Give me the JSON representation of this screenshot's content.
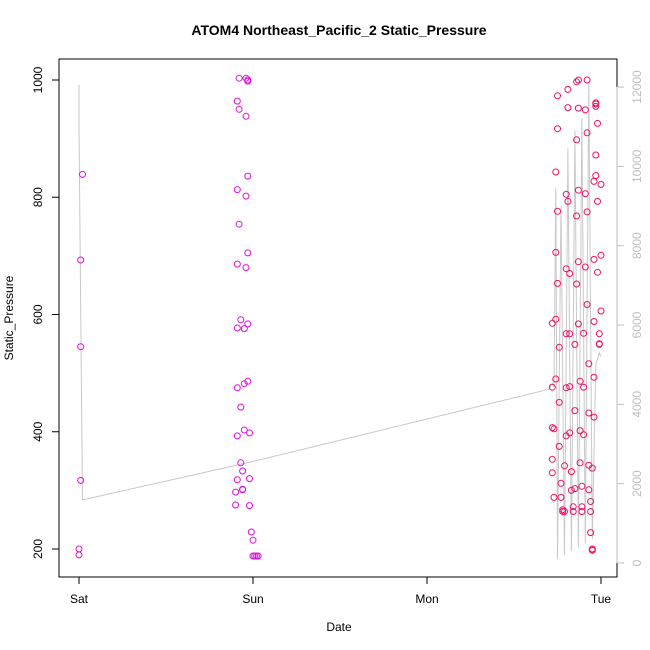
{
  "chart_data": {
    "type": "scatter",
    "title": "ATOM4 Northeast_Pacific_2 Static_Pressure",
    "xlabel": "Date",
    "ylabel": "Static_Pressure",
    "x_ticks": [
      "Sat",
      "Sun",
      "Mon",
      "Tue"
    ],
    "x_unit": "days since the Sat tick",
    "xlim": [
      -0.15,
      3.15
    ],
    "ylim": [
      175,
      1020
    ],
    "y_ticks": [
      200,
      400,
      600,
      800,
      1000
    ],
    "y2_ticks": [
      0,
      2000,
      4000,
      6000,
      8000,
      10000,
      12000
    ],
    "y2lim": [
      -300,
      12500
    ],
    "grid": false,
    "colors": {
      "points_early": "#dd11dd",
      "points_late": "#ee1166",
      "line": "#c8c8c8",
      "axis": "#000000",
      "right_axis": "#bebebe"
    },
    "series": [
      {
        "name": "Static_Pressure",
        "points": [
          [
            0.0,
            190
          ],
          [
            0.0,
            200
          ],
          [
            0.01,
            317
          ],
          [
            0.01,
            545
          ],
          [
            0.01,
            693
          ],
          [
            0.02,
            839
          ],
          [
            0.9,
            275
          ],
          [
            0.9,
            297
          ],
          [
            0.91,
            318
          ],
          [
            0.91,
            393
          ],
          [
            0.91,
            475
          ],
          [
            0.91,
            577
          ],
          [
            0.91,
            686
          ],
          [
            0.91,
            813
          ],
          [
            0.91,
            964
          ],
          [
            0.92,
            1003
          ],
          [
            0.92,
            950
          ],
          [
            0.92,
            754
          ],
          [
            0.93,
            591
          ],
          [
            0.93,
            442
          ],
          [
            0.93,
            347
          ],
          [
            0.94,
            301
          ],
          [
            0.94,
            302
          ],
          [
            0.94,
            333
          ],
          [
            0.95,
            403
          ],
          [
            0.95,
            482
          ],
          [
            0.95,
            576
          ],
          [
            0.96,
            680
          ],
          [
            0.96,
            802
          ],
          [
            0.96,
            938
          ],
          [
            0.96,
            1003
          ],
          [
            0.97,
            998
          ],
          [
            0.97,
            1000
          ],
          [
            0.97,
            836
          ],
          [
            0.97,
            705
          ],
          [
            0.97,
            584
          ],
          [
            0.97,
            486
          ],
          [
            0.98,
            398
          ],
          [
            0.98,
            320
          ],
          [
            0.98,
            274
          ],
          [
            0.99,
            229
          ],
          [
            1.0,
            215
          ],
          [
            1.0,
            188
          ],
          [
            1.01,
            188
          ],
          [
            1.02,
            188
          ],
          [
            1.03,
            188
          ],
          [
            2.72,
            330
          ],
          [
            2.72,
            353
          ],
          [
            2.72,
            407
          ],
          [
            2.72,
            476
          ],
          [
            2.72,
            585
          ],
          [
            2.73,
            288
          ],
          [
            2.73,
            405
          ],
          [
            2.74,
            490
          ],
          [
            2.74,
            592
          ],
          [
            2.74,
            706
          ],
          [
            2.74,
            843
          ],
          [
            2.75,
            973
          ],
          [
            2.75,
            917
          ],
          [
            2.75,
            776
          ],
          [
            2.75,
            653
          ],
          [
            2.76,
            544
          ],
          [
            2.76,
            450
          ],
          [
            2.76,
            375
          ],
          [
            2.77,
            312
          ],
          [
            2.77,
            288
          ],
          [
            2.78,
            264
          ],
          [
            2.78,
            267
          ],
          [
            2.79,
            264
          ],
          [
            2.79,
            342
          ],
          [
            2.8,
            393
          ],
          [
            2.8,
            475
          ],
          [
            2.8,
            567
          ],
          [
            2.8,
            678
          ],
          [
            2.8,
            805
          ],
          [
            2.81,
            953
          ],
          [
            2.81,
            984
          ],
          [
            2.81,
            793
          ],
          [
            2.82,
            670
          ],
          [
            2.82,
            567
          ],
          [
            2.82,
            477
          ],
          [
            2.82,
            398
          ],
          [
            2.83,
            332
          ],
          [
            2.83,
            300
          ],
          [
            2.84,
            264
          ],
          [
            2.84,
            272
          ],
          [
            2.85,
            303
          ],
          [
            2.85,
            436
          ],
          [
            2.85,
            549
          ],
          [
            2.86,
            652
          ],
          [
            2.86,
            768
          ],
          [
            2.86,
            898
          ],
          [
            2.86,
            997
          ],
          [
            2.87,
            1000
          ],
          [
            2.87,
            952
          ],
          [
            2.87,
            812
          ],
          [
            2.87,
            690
          ],
          [
            2.87,
            584
          ],
          [
            2.88,
            486
          ],
          [
            2.88,
            402
          ],
          [
            2.88,
            347
          ],
          [
            2.89,
            264
          ],
          [
            2.89,
            272
          ],
          [
            2.89,
            307
          ],
          [
            2.9,
            395
          ],
          [
            2.9,
            476
          ],
          [
            2.9,
            568
          ],
          [
            2.91,
            681
          ],
          [
            2.91,
            806
          ],
          [
            2.91,
            949
          ],
          [
            2.92,
            1000
          ],
          [
            2.92,
            910
          ],
          [
            2.92,
            775
          ],
          [
            2.92,
            617
          ],
          [
            2.93,
            516
          ],
          [
            2.93,
            432
          ],
          [
            2.93,
            343
          ],
          [
            2.93,
            301
          ],
          [
            2.94,
            281
          ],
          [
            2.94,
            264
          ],
          [
            2.94,
            228
          ],
          [
            2.95,
            200
          ],
          [
            2.95,
            198
          ],
          [
            2.95,
            198
          ],
          [
            2.95,
            338
          ],
          [
            2.96,
            425
          ],
          [
            2.96,
            493
          ],
          [
            2.96,
            588
          ],
          [
            2.96,
            694
          ],
          [
            2.96,
            827
          ],
          [
            2.97,
            837
          ],
          [
            2.97,
            872
          ],
          [
            2.97,
            961
          ],
          [
            2.97,
            959
          ],
          [
            2.97,
            955
          ],
          [
            2.98,
            926
          ],
          [
            2.98,
            793
          ],
          [
            2.98,
            672
          ],
          [
            2.99,
            567
          ],
          [
            2.99,
            549
          ],
          [
            2.99,
            550
          ],
          [
            3.0,
            606
          ],
          [
            3.0,
            701
          ],
          [
            3.0,
            822
          ]
        ]
      },
      {
        "name": "secondary_axis_line",
        "axis": "right",
        "points": [
          [
            0.0,
            12050
          ],
          [
            0.0,
            11000
          ],
          [
            0.02,
            1600
          ],
          [
            0.03,
            1600
          ],
          [
            1.0,
            2560
          ],
          [
            2.7,
            4380
          ],
          [
            2.72,
            4530
          ],
          [
            2.73,
            4430
          ],
          [
            2.74,
            9450
          ],
          [
            2.75,
            100
          ],
          [
            2.77,
            9000
          ],
          [
            2.79,
            200
          ],
          [
            2.81,
            10450
          ],
          [
            2.83,
            300
          ],
          [
            2.85,
            10900
          ],
          [
            2.87,
            400
          ],
          [
            2.89,
            11200
          ],
          [
            2.91,
            500
          ],
          [
            2.93,
            12100
          ],
          [
            2.95,
            600
          ],
          [
            2.97,
            5000
          ],
          [
            2.99,
            5300
          ],
          [
            3.0,
            5200
          ]
        ]
      }
    ]
  }
}
